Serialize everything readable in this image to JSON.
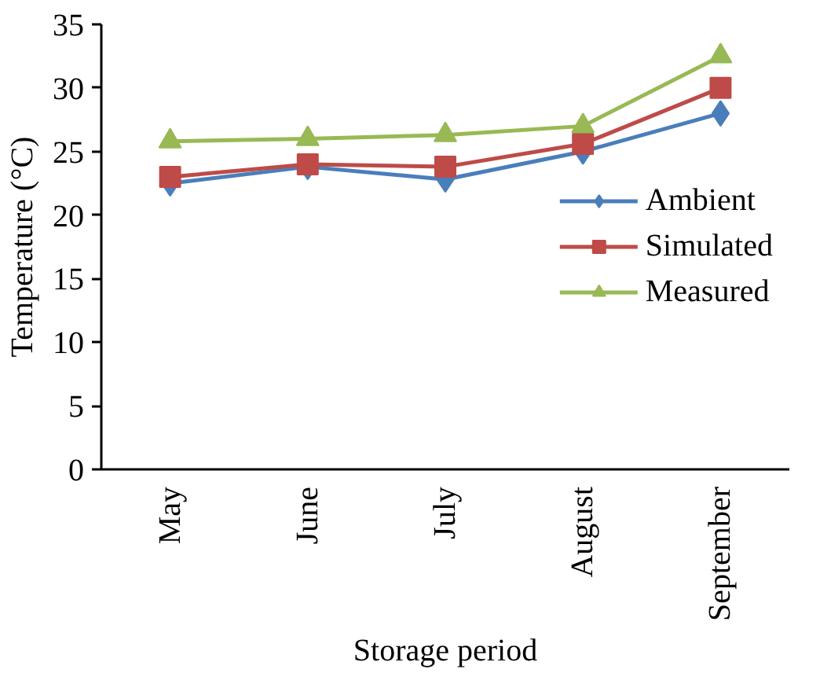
{
  "chart_data": {
    "type": "line",
    "xlabel": "Storage period",
    "ylabel": "Temperature (°C)",
    "categories": [
      "May",
      "June",
      "July",
      "August",
      "September"
    ],
    "ylim": [
      0,
      35
    ],
    "yticks": [
      0,
      5,
      10,
      15,
      20,
      25,
      30,
      35
    ],
    "grid": false,
    "legend": "right",
    "line_style": "solid",
    "series": [
      {
        "name": "Ambient",
        "color": "#4a7ebb",
        "marker": "diamond",
        "values": [
          22.5,
          23.8,
          22.8,
          25,
          28
        ]
      },
      {
        "name": "Simulated",
        "color": "#be4b48",
        "marker": "square",
        "values": [
          23,
          24,
          23.8,
          25.6,
          30
        ]
      },
      {
        "name": "Measured",
        "color": "#98b954",
        "marker": "triangle",
        "values": [
          25.8,
          26,
          26.3,
          27,
          32.5
        ]
      }
    ]
  }
}
